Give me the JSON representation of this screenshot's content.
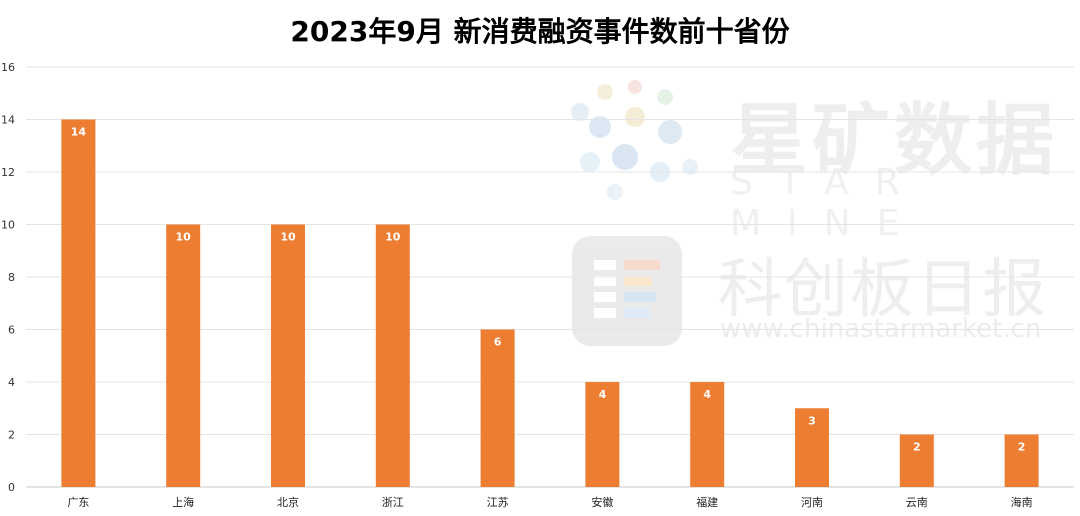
{
  "title": "2023年9月 新消费融资事件数前十省份",
  "watermark": {
    "brand_cn": "星矿数据",
    "brand_en": "STAR MINE",
    "source_cn": "科创板日报",
    "url": "www.chinastarmarket.cn"
  },
  "colors": {
    "bar": "#ED7D31",
    "grid": "#e4e4e4",
    "axis": "#c9c9c9"
  },
  "chart_data": {
    "type": "bar",
    "title": "2023年9月 新消费融资事件数前十省份",
    "categories": [
      "广东",
      "上海",
      "北京",
      "浙江",
      "江苏",
      "安徽",
      "福建",
      "河南",
      "云南",
      "海南"
    ],
    "values": [
      14,
      10,
      10,
      10,
      6,
      4,
      4,
      3,
      2,
      2
    ],
    "yticks": [
      0,
      2,
      4,
      6,
      8,
      10,
      12,
      14,
      16
    ],
    "ylim": [
      0,
      16
    ],
    "xlabel": "",
    "ylabel": "",
    "grid": true,
    "data_labels": true
  }
}
